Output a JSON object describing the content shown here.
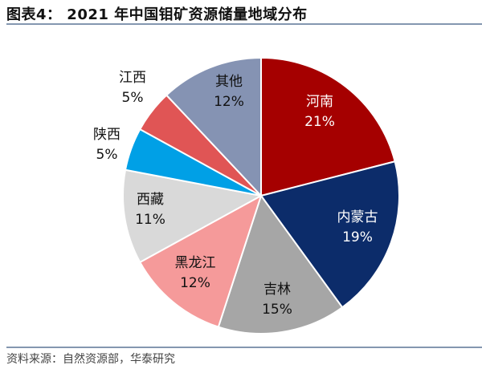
{
  "title": "图表4： 2021 年中国钼矿资源储量地域分布",
  "source": "资料来源：自然资源部，华泰研究",
  "chart_data": {
    "type": "pie",
    "title": "图表4： 2021 年中国钼矿资源储量地域分布",
    "start": "12 o'clock, clockwise",
    "slices": [
      {
        "name": "河南",
        "value": 21,
        "label": "21%",
        "color": "#a50000"
      },
      {
        "name": "内蒙古",
        "value": 19,
        "label": "19%",
        "color": "#0c2c6a"
      },
      {
        "name": "吉林",
        "value": 15,
        "label": "15%",
        "color": "#a6a6a6"
      },
      {
        "name": "黑龙江",
        "value": 12,
        "label": "12%",
        "color": "#f59a9a"
      },
      {
        "name": "西藏",
        "value": 11,
        "label": "11%",
        "color": "#d9d9d9"
      },
      {
        "name": "陕西",
        "value": 5,
        "label": "5%",
        "color": "#00a0e6"
      },
      {
        "name": "江西",
        "value": 5,
        "label": "5%",
        "color": "#e05555"
      },
      {
        "name": "其他",
        "value": 12,
        "label": "12%",
        "color": "#8593b3"
      }
    ]
  }
}
